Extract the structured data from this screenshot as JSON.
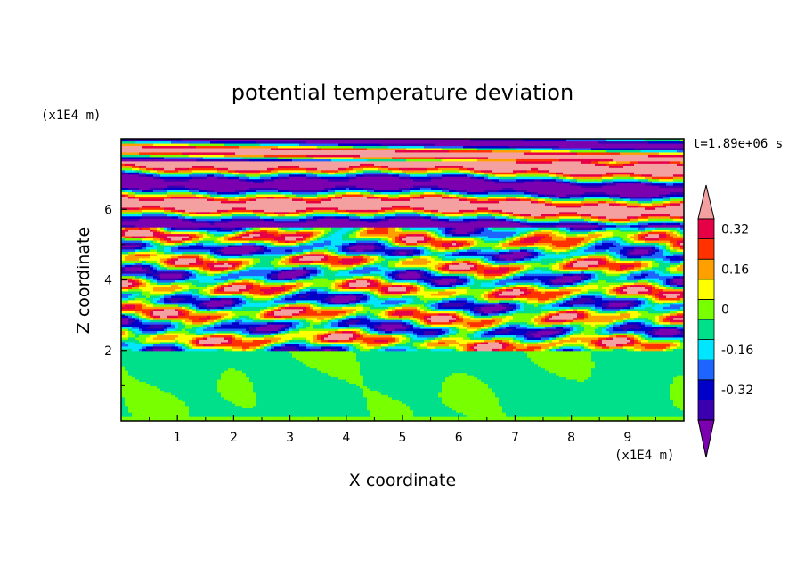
{
  "chart_data": {
    "type": "heatmap",
    "title": "potential temperature deviation",
    "xlabel": "X coordinate",
    "ylabel": "Z coordinate",
    "x_unit": "(x1E4 m)",
    "y_unit": "(x1E4 m)",
    "time_label": "t=1.89e+06 s",
    "xlim": [
      0,
      10
    ],
    "ylim": [
      0,
      8
    ],
    "x_ticks": [
      "1",
      "2",
      "3",
      "4",
      "5",
      "6",
      "7",
      "8",
      "9"
    ],
    "y_ticks": [
      "2",
      "4",
      "6"
    ],
    "colorbar": {
      "ticks": [
        "0.32",
        "0.16",
        "0",
        "-0.16",
        "-0.32"
      ],
      "tick_values": [
        0.32,
        0.16,
        0,
        -0.16,
        -0.32
      ],
      "levels": [
        -0.4,
        -0.32,
        -0.24,
        -0.16,
        -0.08,
        0,
        0.08,
        0.16,
        0.24,
        0.32,
        0.4
      ],
      "colors": [
        "#7b00b0",
        "#3a00b0",
        "#0000c8",
        "#1e64ff",
        "#00e6ff",
        "#00e08a",
        "#78ff00",
        "#ffff00",
        "#ffa000",
        "#ff3200",
        "#e60046",
        "#f5a0a0"
      ],
      "extend": "both"
    },
    "layers": [
      {
        "z": [
          0,
          2
        ],
        "description": "near-zero deviation",
        "dominant_colors": [
          "#00e08a",
          "#78ff00"
        ]
      },
      {
        "z": [
          2,
          5.5
        ],
        "description": "mixed wavy bands",
        "dominant_colors": [
          "#ffff00",
          "#ff3200",
          "#00e6ff",
          "#0000c8",
          "#78ff00"
        ]
      },
      {
        "z": [
          5.5,
          8
        ],
        "description": "alternating horizontal layers",
        "dominant_colors": [
          "#f5a0a0",
          "#7b00b0"
        ]
      }
    ]
  }
}
